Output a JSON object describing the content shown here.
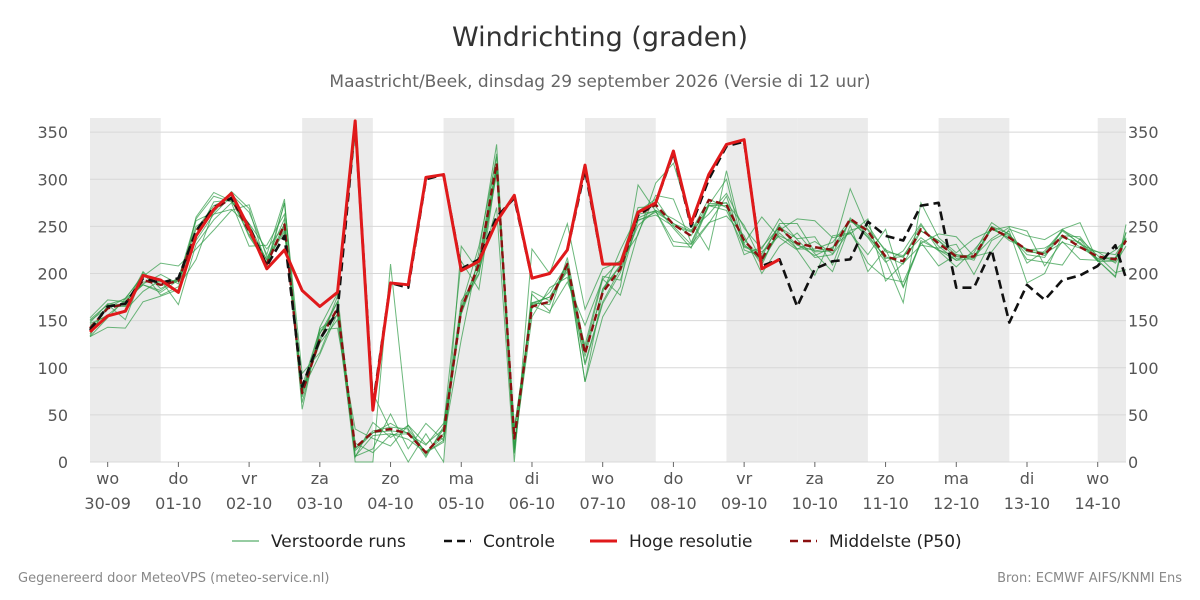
{
  "header": {
    "title": "Windrichting (graden)",
    "subtitle": "Maastricht/Beek, dinsdag 29 september 2026 (Versie di 12 uur)"
  },
  "footer": {
    "left": "Gegenereerd door MeteoVPS (meteo-service.nl)",
    "right": "Bron: ECMWF AIFS/KNMI Ens"
  },
  "colors": {
    "ensemble": "#2e9a44",
    "control": "#111111",
    "hires": "#e0191b",
    "median": "#8b1010",
    "shade": "#ebebeb",
    "grid": "#d8d8d8"
  },
  "chart_data": {
    "type": "line",
    "title": "Windrichting (graden)",
    "x_unit": "days since 29-09 00:00 (6-hourly)",
    "xlim": [
      0.75,
      15.4
    ],
    "ylim": [
      0,
      360
    ],
    "yticks": [
      0,
      50,
      100,
      150,
      200,
      250,
      300,
      350
    ],
    "y_axes": [
      "left",
      "right"
    ],
    "grid": true,
    "weekend_shading": [
      [
        0.75,
        1.75
      ],
      [
        3.75,
        4.75
      ],
      [
        5.75,
        6.75
      ],
      [
        7.75,
        8.75
      ],
      [
        9.75,
        10.75
      ],
      [
        10.75,
        11.75
      ],
      [
        12.75,
        13.75
      ],
      [
        15.0,
        15.4
      ]
    ],
    "x_ticks": [
      {
        "x": 1,
        "day": "wo",
        "date": "30-09"
      },
      {
        "x": 2,
        "day": "do",
        "date": "01-10"
      },
      {
        "x": 3,
        "day": "vr",
        "date": "02-10"
      },
      {
        "x": 4,
        "day": "za",
        "date": "03-10"
      },
      {
        "x": 5,
        "day": "zo",
        "date": "04-10"
      },
      {
        "x": 6,
        "day": "ma",
        "date": "05-10"
      },
      {
        "x": 7,
        "day": "di",
        "date": "06-10"
      },
      {
        "x": 8,
        "day": "wo",
        "date": "07-10"
      },
      {
        "x": 9,
        "day": "do",
        "date": "08-10"
      },
      {
        "x": 10,
        "day": "vr",
        "date": "09-10"
      },
      {
        "x": 11,
        "day": "za",
        "date": "10-10"
      },
      {
        "x": 12,
        "day": "zo",
        "date": "11-10"
      },
      {
        "x": 13,
        "day": "ma",
        "date": "12-10"
      },
      {
        "x": 14,
        "day": "di",
        "date": "13-10"
      },
      {
        "x": 15,
        "day": "wo",
        "date": "14-10"
      }
    ],
    "legend": [
      {
        "key": "ensemble",
        "label": "Verstoorde runs",
        "style": "thin-solid"
      },
      {
        "key": "control",
        "label": "Controle",
        "style": "dashed"
      },
      {
        "key": "hires",
        "label": "Hoge resolutie",
        "style": "thick-solid"
      },
      {
        "key": "median",
        "label": "Middelste (P50)",
        "style": "dashed"
      }
    ],
    "legend_position": "bottom",
    "series": [
      {
        "key": "hires",
        "label": "Hoge resolutie",
        "x": [
          0.75,
          1.0,
          1.25,
          1.5,
          1.75,
          2.0,
          2.25,
          2.5,
          2.75,
          3.0,
          3.25,
          3.5,
          3.75,
          4.0,
          4.25,
          4.5,
          4.75,
          5.0,
          5.25,
          5.5,
          5.75,
          6.0,
          6.25,
          6.5,
          6.75,
          7.0,
          7.25,
          7.5,
          7.75,
          8.0,
          8.25,
          8.5,
          8.75,
          9.0,
          9.25,
          9.5,
          9.75,
          10.0,
          10.25,
          10.5
        ],
        "values": [
          138,
          155,
          160,
          198,
          193,
          180,
          240,
          268,
          285,
          248,
          205,
          225,
          182,
          165,
          180,
          362,
          55,
          190,
          188,
          302,
          305,
          203,
          213,
          255,
          283,
          195,
          200,
          225,
          315,
          210,
          210,
          265,
          275,
          330,
          253,
          305,
          337,
          342,
          205,
          215
        ]
      },
      {
        "key": "control",
        "label": "Controle",
        "x": [
          0.75,
          1.0,
          1.25,
          1.5,
          1.75,
          2.0,
          2.25,
          2.5,
          2.75,
          3.0,
          3.25,
          3.5,
          3.75,
          4.0,
          4.25,
          4.5,
          4.75,
          5.0,
          5.25,
          5.5,
          5.75,
          6.0,
          6.25,
          6.5,
          6.75,
          7.0,
          7.25,
          7.5,
          7.75,
          8.0,
          8.25,
          8.5,
          8.75,
          9.0,
          9.25,
          9.5,
          9.75,
          10.0,
          10.25,
          10.5,
          10.75,
          11.0,
          11.25,
          11.5,
          11.75,
          12.0,
          12.25,
          12.5,
          12.75,
          13.0,
          13.25,
          13.5,
          13.75,
          14.0,
          14.25,
          14.5,
          14.75,
          15.0,
          15.25,
          15.4
        ],
        "values": [
          140,
          165,
          168,
          195,
          190,
          195,
          245,
          270,
          280,
          250,
          208,
          240,
          80,
          130,
          160,
          360,
          60,
          190,
          185,
          300,
          305,
          205,
          215,
          260,
          280,
          195,
          200,
          225,
          310,
          210,
          210,
          262,
          275,
          328,
          250,
          300,
          335,
          340,
          208,
          215,
          165,
          205,
          213,
          215,
          255,
          240,
          235,
          272,
          275,
          185,
          185,
          225,
          148,
          188,
          172,
          193,
          198,
          208,
          230,
          195
        ]
      },
      {
        "key": "median",
        "label": "Middelste (P50)",
        "x": [
          0.75,
          1.0,
          1.25,
          1.5,
          1.75,
          2.0,
          2.25,
          2.5,
          2.75,
          3.0,
          3.25,
          3.5,
          3.75,
          4.0,
          4.25,
          4.5,
          4.75,
          5.0,
          5.25,
          5.5,
          5.75,
          6.0,
          6.25,
          6.5,
          6.75,
          7.0,
          7.25,
          7.5,
          7.75,
          8.0,
          8.25,
          8.5,
          8.75,
          9.0,
          9.25,
          9.5,
          9.75,
          10.0,
          10.25,
          10.5,
          10.75,
          11.0,
          11.25,
          11.5,
          11.75,
          12.0,
          12.25,
          12.5,
          12.75,
          13.0,
          13.25,
          13.5,
          13.75,
          14.0,
          14.25,
          14.5,
          14.75,
          15.0,
          15.25,
          15.4
        ],
        "values": [
          142,
          163,
          168,
          193,
          188,
          192,
          245,
          268,
          280,
          245,
          210,
          252,
          73,
          130,
          163,
          15,
          32,
          35,
          30,
          10,
          30,
          162,
          210,
          317,
          25,
          165,
          170,
          210,
          115,
          180,
          205,
          262,
          273,
          252,
          240,
          278,
          273,
          235,
          215,
          248,
          232,
          228,
          225,
          258,
          245,
          218,
          213,
          247,
          232,
          218,
          218,
          248,
          238,
          225,
          220,
          240,
          228,
          218,
          215,
          235
        ]
      }
    ],
    "ensemble_members": [
      [
        153,
        172,
        170,
        189,
        199,
        189,
        256,
        265,
        287,
        269,
        206,
        275,
        75,
        127,
        176,
        347,
        73,
        34,
        0,
        30,
        0,
        229,
        202,
        270,
        0,
        226,
        200,
        253,
        162,
        205,
        213,
        241,
        296,
        317,
        256,
        225,
        309,
        232,
        260,
        238,
        225,
        198,
        240,
        243,
        220,
        247,
        186,
        235,
        225,
        218,
        217,
        250,
        242,
        215,
        212,
        209,
        237,
        219,
        201,
        204
      ],
      [
        150,
        163,
        174,
        197,
        211,
        208,
        226,
        246,
        267,
        273,
        217,
        246,
        80,
        141,
        156,
        0,
        0,
        210,
        33,
        5,
        38,
        213,
        183,
        310,
        9,
        178,
        160,
        191,
        145,
        194,
        177,
        243,
        283,
        279,
        233,
        273,
        300,
        225,
        218,
        253,
        253,
        223,
        224,
        290,
        246,
        214,
        169,
        275,
        238,
        222,
        237,
        246,
        250,
        245,
        208,
        234,
        215,
        214,
        197,
        252
      ],
      [
        134,
        167,
        151,
        201,
        177,
        186,
        215,
        267,
        284,
        265,
        220,
        279,
        69,
        136,
        170,
        6,
        14,
        51,
        14,
        41,
        23,
        130,
        223,
        337,
        13,
        181,
        171,
        206,
        85,
        154,
        186,
        294,
        266,
        234,
        231,
        254,
        261,
        240,
        200,
        229,
        243,
        221,
        202,
        251,
        202,
        226,
        185,
        233,
        208,
        220,
        218,
        223,
        247,
        240,
        236,
        247,
        254,
        213,
        225,
        236
      ],
      [
        133,
        143,
        142,
        170,
        176,
        183,
        260,
        286,
        277,
        252,
        214,
        244,
        75,
        140,
        142,
        35,
        25,
        17,
        39,
        7,
        35,
        171,
        200,
        306,
        15,
        154,
        185,
        196,
        124,
        197,
        193,
        257,
        262,
        250,
        231,
        272,
        275,
        251,
        212,
        246,
        258,
        256,
        238,
        242,
        258,
        192,
        211,
        230,
        227,
        231,
        199,
        235,
        245,
        190,
        200,
        240,
        239,
        215,
        216,
        235
      ],
      [
        147,
        155,
        161,
        181,
        193,
        167,
        231,
        257,
        275,
        229,
        230,
        263,
        56,
        143,
        179,
        6,
        28,
        30,
        24,
        10,
        23,
        157,
        207,
        317,
        36,
        163,
        180,
        210,
        85,
        180,
        225,
        263,
        266,
        229,
        228,
        253,
        282,
        229,
        223,
        240,
        231,
        219,
        228,
        244,
        211,
        195,
        191,
        232,
        242,
        239,
        218,
        247,
        238,
        225,
        227,
        238,
        233,
        214,
        196,
        244
      ],
      [
        133,
        153,
        173,
        188,
        182,
        196,
        250,
        263,
        268,
        250,
        211,
        275,
        94,
        116,
        164,
        20,
        10,
        29,
        30,
        18,
        41,
        164,
        199,
        310,
        10,
        168,
        175,
        208,
        105,
        170,
        205,
        251,
        267,
        258,
        246,
        263,
        285,
        248,
        226,
        258,
        236,
        217,
        220,
        246,
        251,
        223,
        219,
        245,
        235,
        216,
        218,
        237,
        249,
        211,
        224,
        246,
        236,
        213,
        213,
        243
      ],
      [
        148,
        168,
        166,
        202,
        184,
        194,
        258,
        282,
        276,
        253,
        226,
        251,
        76,
        114,
        158,
        14,
        33,
        37,
        35,
        10,
        21,
        166,
        229,
        324,
        35,
        166,
        158,
        217,
        119,
        194,
        214,
        270,
        271,
        248,
        227,
        272,
        272,
        220,
        228,
        249,
        237,
        239,
        209,
        259,
        241,
        216,
        218,
        238,
        224,
        207,
        225,
        247,
        240,
        220,
        217,
        247,
        231,
        223,
        220,
        237
      ],
      [
        145,
        156,
        171,
        188,
        180,
        193,
        235,
        263,
        282,
        239,
        211,
        253,
        76,
        126,
        151,
        5,
        42,
        26,
        39,
        19,
        35,
        163,
        213,
        327,
        14,
        169,
        175,
        202,
        103,
        168,
        201,
        256,
        265,
        253,
        240,
        272,
        267,
        228,
        221,
        251,
        226,
        226,
        233,
        257,
        238,
        212,
        224,
        253,
        225,
        214,
        222,
        254,
        241,
        223,
        221,
        233,
        227,
        223,
        211,
        229
      ],
      [
        136,
        165,
        165,
        191,
        191,
        193,
        240,
        276,
        278,
        241,
        209,
        250,
        63,
        137,
        160,
        15,
        31,
        41,
        30,
        11,
        26,
        161,
        205,
        311,
        16,
        167,
        170,
        205,
        117,
        183,
        208,
        259,
        267,
        253,
        245,
        279,
        270,
        237,
        209,
        249,
        230,
        224,
        227,
        255,
        247,
        225,
        217,
        251,
        229,
        214,
        216,
        250,
        235,
        226,
        222,
        245,
        232,
        213,
        214,
        238
      ],
      [
        151,
        167,
        173,
        199,
        188,
        192,
        247,
        272,
        281,
        244,
        215,
        258,
        72,
        131,
        170,
        12,
        31,
        33,
        31,
        10,
        30,
        158,
        214,
        314,
        28,
        169,
        167,
        212,
        112,
        184,
        209,
        266,
        279,
        251,
        244,
        274,
        275,
        231,
        213,
        243,
        226,
        234,
        221,
        257,
        239,
        218,
        210,
        245,
        235,
        220,
        214,
        248,
        237,
        225,
        219,
        241,
        228,
        216,
        217,
        237
      ]
    ]
  }
}
